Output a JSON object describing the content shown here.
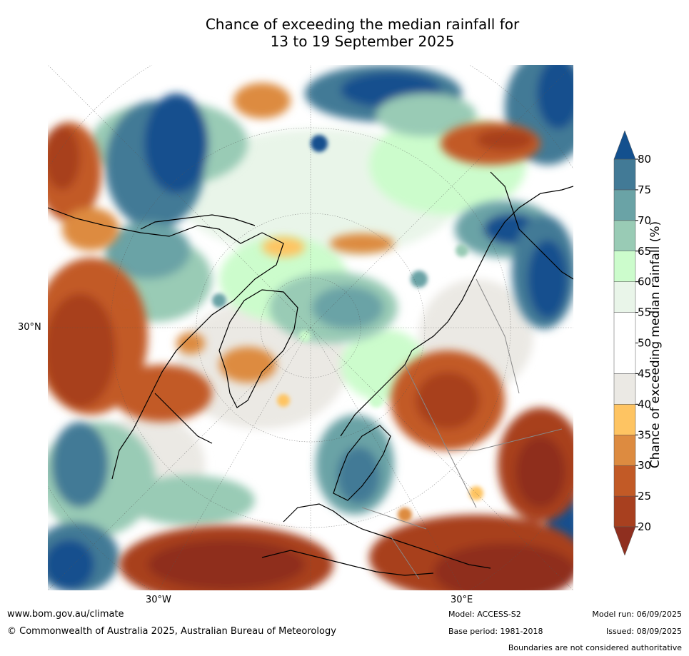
{
  "title": {
    "line1": "Chance of exceeding the median rainfall for",
    "line2": "13 to 19 September 2025"
  },
  "map": {
    "projection": "north-polar-stereographic",
    "lat_label": "30°N",
    "lon_labels": [
      "30°W",
      "30°E"
    ]
  },
  "colorbar": {
    "title": "Chance of exceeding median rainfall (%)",
    "ticks": [
      "20",
      "25",
      "30",
      "35",
      "40",
      "45",
      "50",
      "55",
      "60",
      "65",
      "70",
      "75",
      "80"
    ],
    "colors": {
      "below_20": "#8f2f1f",
      "20_25": "#a8401f",
      "25_30": "#c25a26",
      "30_35": "#dd8b40",
      "35_40": "#fec462",
      "40_45": "#ebe9e4",
      "45_55": "#ffffff",
      "55_60": "#e9f5e9",
      "60_65": "#ccfccc",
      "65_70": "#99cbb5",
      "70_75": "#6aa3a6",
      "75_80": "#427a96",
      "above_80": "#13508e"
    }
  },
  "footer": {
    "website": "www.bom.gov.au/climate",
    "copyright": "© Commonwealth of Australia 2025, Australian Bureau of Meteorology",
    "model": "Model: ACCESS-S2",
    "base_period": "Base period: 1981-2018",
    "model_run": "Model run: 06/09/2025",
    "issued": "Issued: 08/09/2025",
    "disclaimer": "Boundaries are not considered authoritative"
  }
}
